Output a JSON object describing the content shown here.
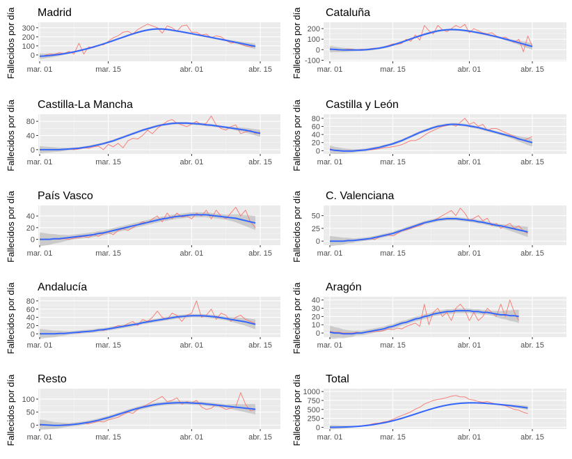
{
  "chart_data": [
    {
      "type": "line",
      "title": "Madrid",
      "ylabel": "Fallecidos por día",
      "x_ticks": [
        "mar. 01",
        "mar. 15",
        "abr. 01",
        "abr. 15"
      ],
      "y_ticks": [
        0,
        100,
        200,
        300
      ],
      "ylim": [
        -70,
        360
      ],
      "smooth_band": 15,
      "observed": [
        -20,
        -5,
        10,
        5,
        25,
        15,
        40,
        10,
        130,
        10,
        90,
        80,
        110,
        110,
        150,
        190,
        210,
        250,
        260,
        230,
        280,
        310,
        340,
        320,
        300,
        240,
        320,
        300,
        260,
        320,
        330,
        250,
        250,
        220,
        230,
        190,
        210,
        200,
        160,
        130,
        140,
        120,
        100,
        90,
        95
      ],
      "trend": [
        -15,
        -12,
        -7,
        -1,
        6,
        14,
        23,
        34,
        46,
        59,
        73,
        88,
        104,
        121,
        139,
        158,
        177,
        196,
        214,
        232,
        249,
        263,
        275,
        283,
        287,
        286,
        281,
        273,
        264,
        255,
        245,
        235,
        224,
        214,
        204,
        193,
        182,
        172,
        161,
        150,
        139,
        128,
        117,
        106,
        95
      ]
    },
    {
      "type": "line",
      "title": "Cataluña",
      "ylabel": "Fallecidos por día",
      "x_ticks": [
        "mar. 01",
        "mar. 15",
        "abr. 01",
        "abr. 15"
      ],
      "y_ticks": [
        -100,
        0,
        100,
        200
      ],
      "ylim": [
        -110,
        260
      ],
      "smooth_band": 15,
      "observed": [
        10,
        0,
        -5,
        0,
        5,
        5,
        -5,
        5,
        0,
        10,
        15,
        10,
        25,
        40,
        55,
        50,
        60,
        100,
        80,
        140,
        90,
        230,
        180,
        150,
        230,
        190,
        170,
        200,
        230,
        210,
        240,
        160,
        200,
        180,
        160,
        150,
        160,
        130,
        110,
        120,
        90,
        70,
        100,
        -20,
        130,
        30
      ],
      "trend": [
        5,
        3,
        0,
        -2,
        -3,
        -3,
        -3,
        -2,
        0,
        4,
        9,
        15,
        23,
        33,
        45,
        58,
        72,
        87,
        102,
        117,
        131,
        145,
        157,
        168,
        178,
        185,
        189,
        191,
        190,
        187,
        182,
        176,
        169,
        161,
        152,
        143,
        133,
        123,
        112,
        101,
        89,
        78,
        66,
        54,
        42,
        30
      ]
    },
    {
      "type": "line",
      "title": "Castilla-La Mancha",
      "ylabel": "Fallecidos por día",
      "x_ticks": [
        "mar. 01",
        "mar. 15",
        "abr. 01",
        "abr. 15"
      ],
      "y_ticks": [
        0,
        40,
        80
      ],
      "ylim": [
        -12,
        100
      ],
      "smooth_band": 5,
      "observed": [
        0,
        0,
        0,
        0,
        0,
        1,
        2,
        0,
        2,
        5,
        4,
        8,
        10,
        0,
        15,
        8,
        18,
        5,
        25,
        32,
        30,
        40,
        55,
        45,
        60,
        70,
        80,
        85,
        75,
        70,
        65,
        72,
        80,
        70,
        75,
        95,
        70,
        60,
        55,
        65,
        70,
        45,
        50,
        55,
        45,
        50
      ],
      "trend": [
        0,
        0,
        0,
        0,
        0,
        1,
        2,
        3,
        4,
        6,
        8,
        11,
        14,
        17,
        21,
        25,
        30,
        35,
        40,
        45,
        50,
        55,
        59,
        63,
        67,
        70,
        72,
        74,
        75,
        75,
        75,
        74,
        73,
        72,
        70,
        69,
        67,
        65,
        63,
        61,
        59,
        57,
        55,
        52,
        49,
        46
      ]
    },
    {
      "type": "line",
      "title": "Castilla y León",
      "ylabel": "Fallecidos por día",
      "x_ticks": [
        "mar. 01",
        "mar. 15",
        "abr. 01",
        "abr. 15"
      ],
      "y_ticks": [
        0,
        20,
        40,
        60,
        80
      ],
      "ylim": [
        -8,
        90
      ],
      "smooth_band": 5,
      "observed": [
        5,
        2,
        1,
        0,
        0,
        0,
        1,
        0,
        2,
        2,
        3,
        5,
        7,
        8,
        10,
        12,
        15,
        20,
        25,
        25,
        30,
        38,
        45,
        50,
        55,
        60,
        62,
        65,
        60,
        70,
        80,
        65,
        70,
        60,
        65,
        50,
        55,
        55,
        50,
        45,
        40,
        35,
        30,
        25,
        30,
        35
      ],
      "trend": [
        3,
        1,
        0,
        -1,
        -1,
        -1,
        0,
        1,
        2,
        4,
        6,
        8,
        11,
        14,
        17,
        21,
        25,
        30,
        35,
        40,
        45,
        49,
        53,
        57,
        60,
        62,
        64,
        65,
        65,
        64,
        63,
        61,
        59,
        57,
        54,
        51,
        48,
        45,
        42,
        39,
        36,
        33,
        29,
        26,
        23,
        20
      ]
    },
    {
      "type": "line",
      "title": "País Vasco",
      "ylabel": "Fallecidos por día",
      "x_ticks": [
        "mar. 01",
        "mar. 15",
        "abr. 01",
        "abr. 15"
      ],
      "y_ticks": [
        0,
        20,
        40
      ],
      "ylim": [
        -10,
        58
      ],
      "smooth_band": 6,
      "observed": [
        0,
        0,
        0,
        0,
        0,
        1,
        0,
        2,
        3,
        5,
        3,
        8,
        5,
        10,
        12,
        8,
        15,
        18,
        15,
        20,
        25,
        30,
        28,
        35,
        40,
        30,
        45,
        35,
        45,
        38,
        40,
        35,
        45,
        40,
        50,
        35,
        50,
        40,
        35,
        45,
        55,
        40,
        50,
        30,
        20
      ],
      "trend": [
        0,
        0,
        0,
        1,
        1,
        2,
        3,
        4,
        5,
        6,
        7,
        8,
        10,
        11,
        13,
        15,
        17,
        19,
        21,
        23,
        25,
        27,
        29,
        31,
        33,
        35,
        36,
        38,
        39,
        40,
        41,
        42,
        42,
        42,
        42,
        41,
        40,
        39,
        38,
        37,
        36,
        34,
        32,
        30,
        28
      ]
    },
    {
      "type": "line",
      "title": "C. Valenciana",
      "ylabel": "Fallecidos por día",
      "x_ticks": [
        "mar. 01",
        "mar. 15",
        "abr. 01",
        "abr. 15"
      ],
      "y_ticks": [
        0,
        25,
        50
      ],
      "ylim": [
        -8,
        70
      ],
      "smooth_band": 5,
      "observed": [
        0,
        0,
        0,
        0,
        0,
        1,
        2,
        2,
        3,
        5,
        3,
        8,
        10,
        12,
        10,
        15,
        20,
        22,
        25,
        28,
        30,
        35,
        38,
        40,
        45,
        50,
        55,
        60,
        50,
        65,
        55,
        40,
        45,
        50,
        40,
        45,
        30,
        35,
        25,
        30,
        35,
        25,
        30,
        20,
        15
      ],
      "trend": [
        0,
        0,
        0,
        0,
        1,
        1,
        2,
        3,
        4,
        5,
        7,
        9,
        11,
        13,
        15,
        18,
        21,
        24,
        27,
        30,
        33,
        36,
        38,
        40,
        42,
        43,
        44,
        44,
        44,
        43,
        42,
        41,
        40,
        38,
        37,
        35,
        33,
        31,
        30,
        28,
        26,
        24,
        22,
        20,
        18
      ]
    },
    {
      "type": "line",
      "title": "Andalucía",
      "ylabel": "Fallecidos por día",
      "x_ticks": [
        "mar. 01",
        "mar. 15",
        "abr. 01",
        "abr. 15"
      ],
      "y_ticks": [
        0,
        20,
        40,
        60,
        80
      ],
      "ylim": [
        -8,
        90
      ],
      "smooth_band": 6,
      "observed": [
        0,
        0,
        0,
        0,
        0,
        1,
        2,
        3,
        2,
        5,
        5,
        8,
        10,
        8,
        12,
        15,
        20,
        18,
        25,
        30,
        20,
        35,
        30,
        40,
        55,
        40,
        35,
        50,
        45,
        30,
        45,
        50,
        80,
        40,
        45,
        60,
        35,
        50,
        45,
        30,
        40,
        45,
        35,
        30,
        25
      ],
      "trend": [
        0,
        0,
        0,
        0,
        1,
        1,
        2,
        3,
        4,
        5,
        6,
        7,
        9,
        10,
        12,
        14,
        16,
        18,
        20,
        22,
        24,
        27,
        29,
        31,
        33,
        35,
        37,
        39,
        41,
        42,
        43,
        44,
        44,
        44,
        43,
        42,
        41,
        39,
        37,
        35,
        33,
        31,
        29,
        26,
        23
      ]
    },
    {
      "type": "line",
      "title": "Aragón",
      "ylabel": "Fallecidos por día",
      "x_ticks": [
        "mar. 01",
        "mar. 15",
        "abr. 01",
        "abr. 15"
      ],
      "y_ticks": [
        0,
        10,
        20,
        30,
        40
      ],
      "ylim": [
        -5,
        44
      ],
      "smooth_band": 4,
      "observed": [
        2,
        1,
        1,
        0,
        0,
        0,
        1,
        0,
        1,
        1,
        2,
        2,
        3,
        5,
        4,
        6,
        5,
        8,
        10,
        12,
        8,
        35,
        10,
        25,
        30,
        20,
        25,
        15,
        30,
        35,
        28,
        15,
        25,
        15,
        20,
        30,
        25,
        20,
        35,
        20,
        40,
        25,
        15
      ],
      "trend": [
        1,
        0,
        0,
        -1,
        -1,
        -1,
        0,
        0,
        1,
        2,
        3,
        4,
        5,
        7,
        8,
        10,
        12,
        13,
        15,
        17,
        18,
        20,
        21,
        23,
        24,
        25,
        26,
        26,
        27,
        27,
        27,
        27,
        26,
        26,
        25,
        25,
        24,
        23,
        22,
        22,
        21,
        21,
        20
      ]
    },
    {
      "type": "line",
      "title": "Resto",
      "ylabel": "Fallecidos por día",
      "x_ticks": [
        "mar. 01",
        "mar. 15",
        "abr. 01",
        "abr. 15"
      ],
      "y_ticks": [
        0,
        50,
        100
      ],
      "ylim": [
        -15,
        140
      ],
      "smooth_band": 10,
      "observed": [
        0,
        0,
        0,
        0,
        0,
        2,
        3,
        2,
        5,
        8,
        5,
        10,
        15,
        12,
        20,
        25,
        30,
        40,
        50,
        45,
        60,
        70,
        80,
        90,
        100,
        110,
        90,
        95,
        105,
        80,
        90,
        85,
        95,
        70,
        60,
        65,
        80,
        70,
        60,
        65,
        70,
        125,
        80,
        55,
        60
      ],
      "trend": [
        2,
        1,
        0,
        -1,
        -1,
        0,
        1,
        3,
        5,
        8,
        11,
        15,
        19,
        24,
        29,
        35,
        41,
        47,
        53,
        59,
        64,
        69,
        73,
        77,
        80,
        82,
        84,
        85,
        86,
        86,
        86,
        85,
        84,
        83,
        81,
        79,
        77,
        75,
        73,
        71,
        69,
        67,
        65,
        63,
        61
      ]
    },
    {
      "type": "line",
      "title": "Total",
      "ylabel": "Fallecidos por día",
      "x_ticks": [
        "mar. 01",
        "mar. 15",
        "abr. 01",
        "abr. 15"
      ],
      "y_ticks": [
        0,
        250,
        500,
        750,
        1000
      ],
      "ylim": [
        -50,
        1080
      ],
      "smooth_band": 30,
      "observed": [
        0,
        2,
        5,
        8,
        10,
        15,
        25,
        40,
        60,
        80,
        110,
        120,
        150,
        170,
        220,
        280,
        330,
        380,
        430,
        510,
        560,
        650,
        700,
        750,
        780,
        800,
        830,
        870,
        890,
        850,
        850,
        780,
        760,
        720,
        700,
        720,
        680,
        650,
        620,
        600,
        550,
        500,
        480,
        420,
        380
      ],
      "trend": [
        0,
        1,
        3,
        6,
        10,
        16,
        24,
        34,
        47,
        62,
        80,
        101,
        125,
        152,
        182,
        215,
        251,
        289,
        329,
        370,
        411,
        452,
        492,
        529,
        563,
        593,
        619,
        641,
        658,
        671,
        679,
        683,
        683,
        680,
        674,
        666,
        656,
        645,
        633,
        620,
        606,
        591,
        575,
        558,
        540
      ]
    }
  ]
}
